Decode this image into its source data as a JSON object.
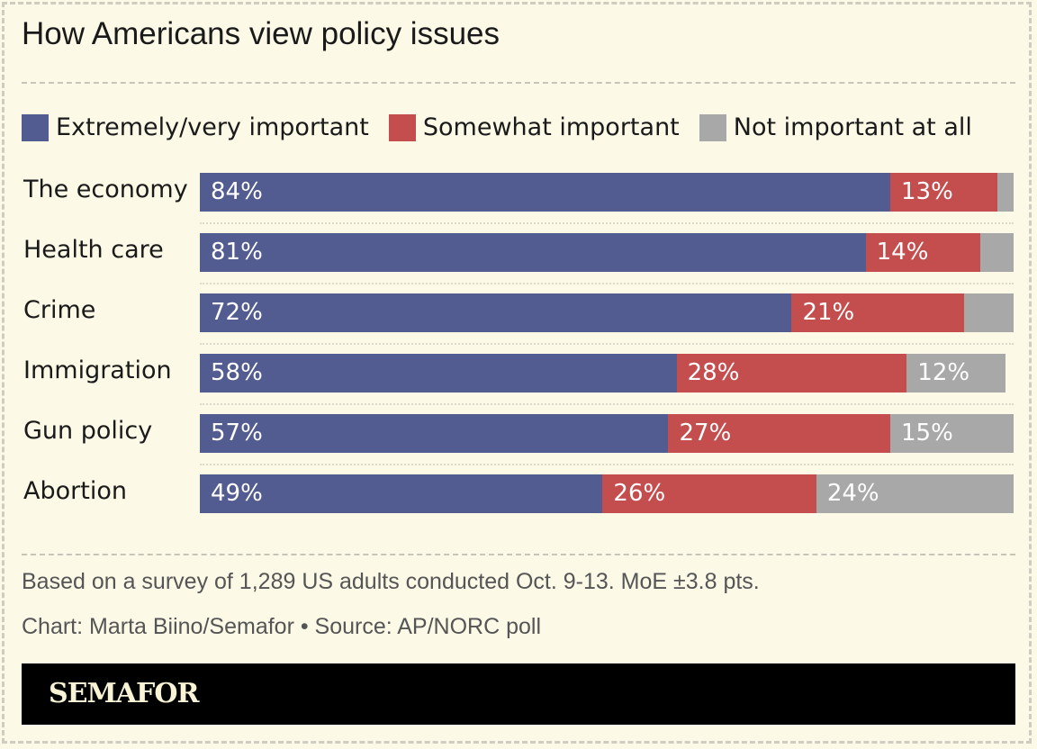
{
  "chart_data": {
    "type": "bar",
    "orientation": "horizontal",
    "stacked": true,
    "title": "How Americans view policy issues",
    "categories": [
      "The economy",
      "Health care",
      "Crime",
      "Immigration",
      "Gun policy",
      "Abortion"
    ],
    "series": [
      {
        "name": "Extremely/very important",
        "color": "#535c90",
        "values": [
          84,
          81,
          72,
          58,
          57,
          49
        ],
        "labels": [
          "84%",
          "81%",
          "72%",
          "58%",
          "57%",
          "49%"
        ]
      },
      {
        "name": "Somewhat important",
        "color": "#c44e4e",
        "values": [
          13,
          14,
          21,
          28,
          27,
          26
        ],
        "labels": [
          "13%",
          "14%",
          "21%",
          "28%",
          "27%",
          "26%"
        ]
      },
      {
        "name": "Not important at all",
        "color": "#a8a8a8",
        "values": [
          2,
          4,
          6,
          12,
          15,
          24
        ],
        "labels": [
          "",
          "",
          "",
          "12%",
          "15%",
          "24%"
        ]
      }
    ],
    "xlim": [
      0,
      99
    ],
    "grid": false,
    "legend_placement": "top"
  },
  "footer": {
    "note": "Based on a survey of 1,289 US adults conducted Oct. 9-13. MoE ±3.8 pts.",
    "credit": "Chart: Marta Biino/Semafor • Source: AP/NORC poll",
    "logo": "SEMAFOR"
  },
  "colors": {
    "background": "#fcf9e6",
    "banner": "#000000"
  }
}
